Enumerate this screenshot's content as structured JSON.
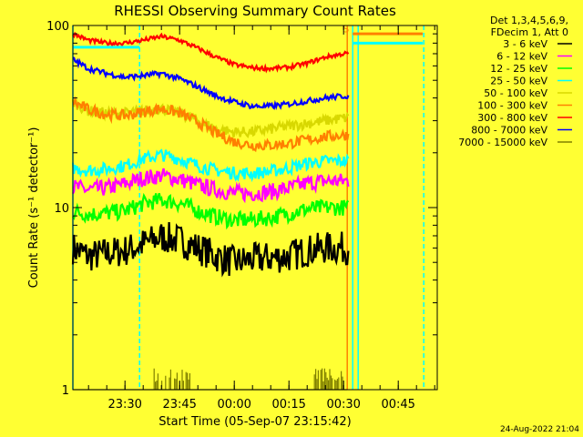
{
  "colors": {
    "background": "#ffff33",
    "axis": "#000000",
    "day_line": "#00ffff",
    "saa_line": "#ff8000",
    "attenuator_line": "#c00000"
  },
  "chart_data": {
    "type": "line",
    "title": "RHESSI Observing Summary Count Rates",
    "xlabel": "Start Time (05-Sep-07 23:15:42)",
    "ylabel": "Count Rate (s⁻¹ detector⁻¹)",
    "y_scale": "log",
    "ylim": [
      1,
      100
    ],
    "y_ticks": [
      1,
      10,
      100
    ],
    "y_tick_labels": [
      "1",
      "10",
      "100"
    ],
    "xlim": [
      "23:15:42",
      "00:55:42"
    ],
    "x_ticks": [
      "23:30",
      "23:45",
      "00:00",
      "00:15",
      "00:30",
      "00:45"
    ],
    "x_tick_labels": [
      "23:30",
      "23:45",
      "00:00",
      "00:15",
      "00:30",
      "00:45"
    ],
    "legend_position": "right, outside plot",
    "legend_header": [
      "Det 1,3,4,5,6,9,",
      "FDecim 1, Att 0"
    ],
    "annotations": [
      {
        "text": "S",
        "time": "00:30",
        "value": 97,
        "color": "#ff8000"
      }
    ],
    "vertical_lines": [
      {
        "time": "23:15:42",
        "style": "solid",
        "color": "#00ffff"
      },
      {
        "time": "23:34:00",
        "style": "dashed",
        "color": "#00ffff"
      },
      {
        "time": "00:31:00",
        "style": "solid",
        "color": "#ff8000"
      },
      {
        "time": "00:32:30",
        "style": "solid",
        "color": "#00ffff"
      },
      {
        "time": "00:34:00",
        "style": "solid",
        "color": "#00ffff"
      },
      {
        "time": "00:52:00",
        "style": "dashed",
        "color": "#00ffff"
      }
    ],
    "x": [
      "23:15:42",
      "23:20",
      "23:25",
      "23:30",
      "23:35",
      "23:40",
      "23:45",
      "23:50",
      "23:55",
      "00:00",
      "00:05",
      "00:10",
      "00:15",
      "00:20",
      "00:25",
      "00:30"
    ],
    "series": [
      {
        "name": "3 - 6 keV",
        "color": "#000000",
        "values": [
          6.0,
          5.4,
          5.6,
          5.8,
          6.3,
          6.9,
          6.6,
          6.0,
          5.4,
          5.0,
          5.2,
          5.3,
          5.4,
          5.8,
          6.0,
          6.0
        ]
      },
      {
        "name": "6 - 12 keV",
        "color": "#ff00ff",
        "values": [
          13.0,
          12.5,
          12.8,
          13.5,
          14.5,
          15.0,
          14.3,
          13.3,
          12.5,
          12.0,
          12.0,
          12.2,
          12.8,
          13.6,
          14.0,
          14.0
        ]
      },
      {
        "name": "12 - 25 keV",
        "color": "#00ff00",
        "values": [
          9.5,
          9.2,
          9.3,
          9.6,
          10.5,
          11.0,
          10.6,
          9.6,
          8.9,
          8.5,
          8.6,
          8.8,
          9.3,
          9.8,
          10.0,
          10.0
        ]
      },
      {
        "name": "25 - 50 keV",
        "color": "#00ffff",
        "values": [
          16.5,
          16.0,
          16.3,
          17.0,
          18.5,
          19.5,
          18.5,
          17.0,
          16.0,
          15.5,
          15.4,
          15.8,
          16.5,
          17.5,
          18.0,
          18.0
        ]
      },
      {
        "name": "50 - 100 keV",
        "color": "#d8d800",
        "values": [
          38.0,
          34.0,
          33.0,
          33.0,
          34.0,
          35.0,
          33.0,
          30.0,
          27.0,
          26.0,
          26.0,
          27.0,
          28.0,
          29.0,
          30.0,
          31.0
        ]
      },
      {
        "name": "100 - 300 keV",
        "color": "#ff8000",
        "values": [
          38.0,
          34.5,
          32.5,
          32.0,
          33.5,
          35.0,
          33.0,
          29.5,
          25.5,
          23.0,
          22.0,
          22.0,
          22.5,
          23.5,
          24.5,
          25.0
        ]
      },
      {
        "name": "300 - 800 keV",
        "color": "#ff0000",
        "values": [
          90.0,
          83.0,
          80.0,
          80.0,
          83.0,
          87.0,
          83.0,
          75.0,
          67.0,
          61.0,
          58.5,
          58.0,
          59.0,
          62.0,
          67.0,
          70.0
        ]
      },
      {
        "name": "800 - 7000 keV",
        "color": "#0000ff",
        "values": [
          65.0,
          58.0,
          54.5,
          52.0,
          53.0,
          54.5,
          51.0,
          46.0,
          41.0,
          38.0,
          36.0,
          36.0,
          37.0,
          38.5,
          40.0,
          41.0
        ]
      },
      {
        "name": "7000 - 15000 keV",
        "color": "#808000",
        "values": [
          1.0,
          1.0,
          1.0,
          1.0,
          1.0,
          1.0,
          1.25,
          1.0,
          1.0,
          1.0,
          1.0,
          1.0,
          1.0,
          1.0,
          1.25,
          1.0
        ]
      }
    ]
  },
  "footer": {
    "timestamp": "24-Aug-2022 21:04"
  }
}
